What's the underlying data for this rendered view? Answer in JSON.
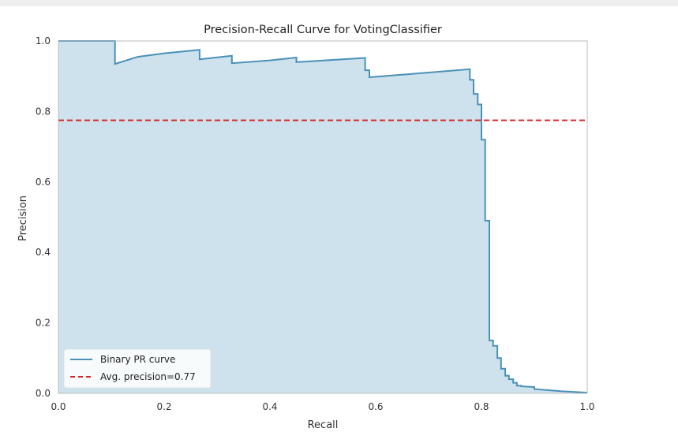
{
  "chart_data": {
    "type": "area",
    "title": "Precision-Recall Curve for VotingClassifier",
    "xlabel": "Recall",
    "ylabel": "Precision",
    "xlim": [
      0.0,
      1.0
    ],
    "ylim": [
      0.0,
      1.0
    ],
    "xticks": [
      "0.0",
      "0.2",
      "0.4",
      "0.6",
      "0.8",
      "1.0"
    ],
    "yticks": [
      "0.0",
      "0.2",
      "0.4",
      "0.6",
      "0.8",
      "1.0"
    ],
    "grid": false,
    "legend_placement": "lower-left",
    "colors": {
      "curve": "#4a90b8",
      "fill": "#cde2ec",
      "avg": "#d62728"
    },
    "series": [
      {
        "name": "Binary PR curve",
        "style": "step",
        "x": [
          0.0,
          0.107,
          0.107,
          0.15,
          0.2,
          0.267,
          0.267,
          0.328,
          0.328,
          0.4,
          0.45,
          0.45,
          0.58,
          0.58,
          0.588,
          0.588,
          0.68,
          0.778,
          0.778,
          0.785,
          0.785,
          0.793,
          0.793,
          0.8,
          0.8,
          0.807,
          0.807,
          0.815,
          0.815,
          0.822,
          0.822,
          0.83,
          0.83,
          0.837,
          0.837,
          0.845,
          0.845,
          0.852,
          0.852,
          0.86,
          0.86,
          0.867,
          0.867,
          0.875,
          0.875,
          0.9,
          0.9,
          0.95,
          1.0
        ],
        "y": [
          1.0,
          1.0,
          0.935,
          0.955,
          0.965,
          0.975,
          0.948,
          0.958,
          0.937,
          0.945,
          0.953,
          0.94,
          0.952,
          0.917,
          0.917,
          0.897,
          0.908,
          0.92,
          0.89,
          0.89,
          0.85,
          0.85,
          0.82,
          0.82,
          0.72,
          0.72,
          0.49,
          0.49,
          0.15,
          0.15,
          0.135,
          0.135,
          0.1,
          0.1,
          0.07,
          0.07,
          0.05,
          0.05,
          0.04,
          0.04,
          0.03,
          0.03,
          0.022,
          0.022,
          0.02,
          0.018,
          0.012,
          0.006,
          0.002
        ]
      },
      {
        "name": "Avg. precision=0.77",
        "style": "dashed",
        "x": [
          0.0,
          1.0
        ],
        "y": [
          0.775,
          0.775
        ]
      }
    ]
  }
}
